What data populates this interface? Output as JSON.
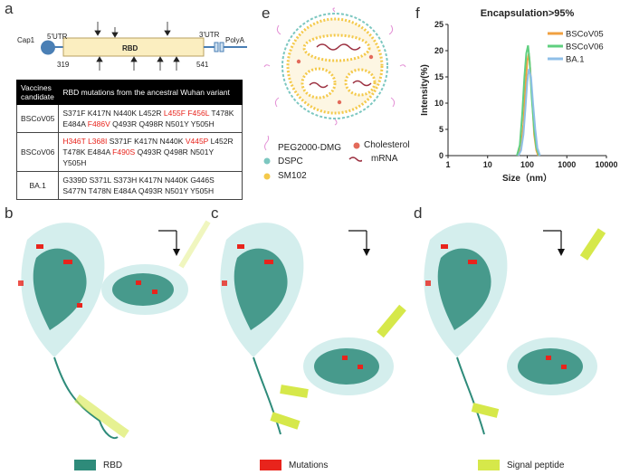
{
  "panels": {
    "a": "a",
    "b": "b",
    "c": "c",
    "d": "d",
    "e": "e",
    "f": "f"
  },
  "gene_schematic": {
    "cap": "Cap1",
    "utr5": "5'UTR",
    "rbd": "RBD",
    "utr3": "3'UTR",
    "polya": "PolyA",
    "start": "319",
    "end": "541"
  },
  "table": {
    "header_col1": "Vaccines candidate",
    "header_col2": "RBD mutations from the ancestral Wuhan variant",
    "rows": [
      {
        "name": "BSCoV05",
        "segments": [
          {
            "text": "S371F K417N N440K L452R ",
            "red": false
          },
          {
            "text": "L455F F456L",
            "red": true
          },
          {
            "text": " T478K E484A ",
            "red": false
          },
          {
            "text": "F486V",
            "red": true
          },
          {
            "text": " Q493R Q498R N501Y Y505H",
            "red": false
          }
        ]
      },
      {
        "name": "BSCoV06",
        "segments": [
          {
            "text": "H346T L368I",
            "red": true
          },
          {
            "text": " S371F K417N N440K ",
            "red": false
          },
          {
            "text": "V445P",
            "red": true
          },
          {
            "text": " L452R T478K E484A ",
            "red": false
          },
          {
            "text": "F490S",
            "red": true
          },
          {
            "text": " Q493R Q498R N501Y Y505H",
            "red": false
          }
        ]
      },
      {
        "name": "BA.1",
        "segments": [
          {
            "text": "G339D S371L S373H K417N N440K G446S S477N T478N E484A Q493R N501Y Y505H",
            "red": false
          }
        ]
      }
    ]
  },
  "lnp_legend": {
    "peg": "PEG2000-DMG",
    "dspc": "DSPC",
    "sm102": "SM102",
    "cholesterol": "Cholesterol",
    "mrna": "mRNA"
  },
  "chart_data": {
    "type": "line",
    "title": "Encapsulation>95%",
    "xlabel": "Size（nm）",
    "ylabel": "Intensity(%)",
    "x_scale": "log",
    "xlim": [
      1,
      10000
    ],
    "ylim": [
      0,
      25
    ],
    "x_ticks": [
      "1",
      "10",
      "100",
      "1000",
      "10000"
    ],
    "y_ticks": [
      "0",
      "5",
      "10",
      "15",
      "20",
      "25"
    ],
    "legend_position": "top-right",
    "series": [
      {
        "name": "BSCoV05",
        "color": "#f0a040",
        "x": [
          60,
          70,
          80,
          90,
          100,
          110,
          120,
          135,
          150,
          170,
          190
        ],
        "y": [
          0,
          1.5,
          6,
          13,
          18,
          19.5,
          16,
          10,
          4,
          1,
          0
        ]
      },
      {
        "name": "BSCoV06",
        "color": "#5fcf7f",
        "x": [
          55,
          65,
          75,
          85,
          95,
          105,
          115,
          130,
          150,
          170,
          200
        ],
        "y": [
          0,
          2,
          8,
          15,
          19.5,
          21,
          18,
          11,
          5,
          1.5,
          0
        ]
      },
      {
        "name": "BA.1",
        "color": "#8fbfe8",
        "x": [
          60,
          70,
          80,
          90,
          100,
          110,
          125,
          140,
          160,
          180,
          210
        ],
        "y": [
          0,
          1,
          4,
          9,
          14,
          16.5,
          15,
          10,
          5,
          1.5,
          0
        ]
      }
    ]
  },
  "structure_legend": {
    "rbd": "RBD",
    "mutations": "Mutations",
    "signal": "Signal peptide"
  },
  "colors": {
    "rbd": "#2e8b7a",
    "mutations": "#e8241c",
    "signal": "#d6e84a"
  }
}
